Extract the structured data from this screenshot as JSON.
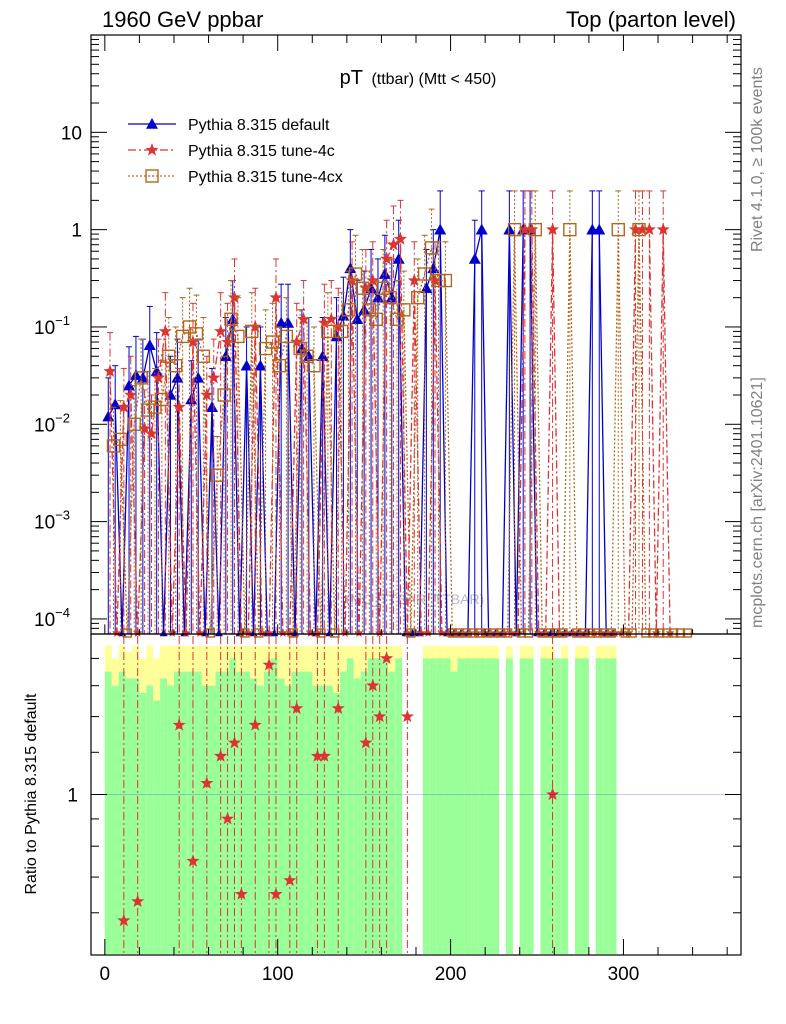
{
  "header": {
    "left": "1960 GeV ppbar",
    "right": "Top (parton level)"
  },
  "side_labels": {
    "rivet": "Rivet 4.1.0, ≥ 100k events",
    "mcplots": "mcplots.cern.ch [arXiv:2401.10621]"
  },
  "watermark": "(MC_TTBAR_TTBAR)",
  "colors": {
    "default": "#0000cc",
    "tune4c": "#dd3333",
    "tune4cx": "#b5651d",
    "band_inner": "#99ff99",
    "band_outer": "#ffff99"
  },
  "chart_data": [
    {
      "type": "line",
      "title_main": "pT",
      "title_sub": "(ttbar) (Mtt < 450)",
      "xlabel": "",
      "ylabel": "",
      "yscale": "log",
      "xlim": [
        -8,
        368
      ],
      "ylim": [
        7e-05,
        100
      ],
      "y_ticks": [
        {
          "value": 10,
          "label": "10"
        },
        {
          "value": 1,
          "label": "1"
        },
        {
          "value": 0.1,
          "label": "10",
          "exp": "−1"
        },
        {
          "value": 0.01,
          "label": "10",
          "exp": "−2"
        },
        {
          "value": 0.001,
          "label": "10",
          "exp": "−3"
        },
        {
          "value": 0.0001,
          "label": "10",
          "exp": "−4"
        }
      ],
      "legend": [
        {
          "name": "Pythia 8.315 default",
          "series": "default"
        },
        {
          "name": "Pythia 8.315 tune-4c",
          "series": "tune4c"
        },
        {
          "name": "Pythia 8.315 tune-4cx",
          "series": "tune4cx"
        }
      ],
      "series": [
        {
          "name": "Pythia 8.315 default",
          "key": "default",
          "marker": "triangle",
          "x": [
            2,
            6,
            10,
            14,
            18,
            22,
            26,
            30,
            34,
            38,
            42,
            46,
            50,
            54,
            58,
            62,
            66,
            70,
            74,
            78,
            82,
            86,
            90,
            94,
            98,
            102,
            106,
            110,
            114,
            118,
            122,
            126,
            130,
            134,
            138,
            142,
            146,
            150,
            154,
            158,
            162,
            166,
            170,
            174,
            178,
            182,
            186,
            190,
            194,
            198,
            202,
            206,
            210,
            214,
            218,
            222,
            226,
            230,
            234,
            238,
            242,
            246,
            250,
            254,
            258,
            262,
            266,
            270,
            274,
            278,
            282,
            286,
            290,
            294
          ],
          "values": [
            0.012,
            0.016,
            0,
            0.025,
            0.032,
            0.03,
            0.065,
            0.035,
            0,
            0.02,
            0.03,
            0,
            0.018,
            0.03,
            0,
            0.015,
            0,
            0.05,
            0.12,
            0,
            0.04,
            0,
            0.04,
            0,
            0,
            0.11,
            0.11,
            0,
            0.06,
            0.05,
            0,
            0.05,
            0,
            0.08,
            0.13,
            0.4,
            0.12,
            0.15,
            0.25,
            0.2,
            0.35,
            0.2,
            0.5,
            0,
            0,
            0,
            0.25,
            0.4,
            1,
            0,
            0,
            0,
            0,
            0.5,
            1,
            0,
            0,
            0,
            1,
            0,
            1,
            1,
            0,
            0,
            0,
            0,
            0,
            0,
            0,
            0,
            1,
            1,
            0,
            0
          ]
        },
        {
          "name": "Pythia 8.315 tune-4c",
          "key": "tune4c",
          "marker": "star",
          "x": [
            3,
            7,
            11,
            15,
            19,
            23,
            27,
            31,
            35,
            39,
            43,
            47,
            51,
            55,
            59,
            63,
            67,
            71,
            75,
            79,
            83,
            87,
            91,
            95,
            99,
            103,
            107,
            111,
            115,
            119,
            123,
            127,
            131,
            135,
            139,
            143,
            147,
            151,
            155,
            159,
            163,
            167,
            171,
            175,
            179,
            183,
            187,
            191,
            195,
            199,
            203,
            207,
            211,
            215,
            219,
            223,
            227,
            231,
            235,
            239,
            243,
            247,
            251,
            255,
            259,
            263,
            267,
            271,
            275,
            279,
            283,
            287,
            291,
            295,
            299,
            303,
            307,
            311,
            315,
            319,
            323,
            327
          ],
          "values": [
            0.035,
            0,
            0.015,
            0.02,
            0,
            0.009,
            0.008,
            0.03,
            0.09,
            0,
            0.015,
            0,
            0.07,
            0,
            0.02,
            0.03,
            0.09,
            0.07,
            0.2,
            0,
            0,
            0.1,
            0,
            0,
            0.2,
            0,
            0,
            0.07,
            0.12,
            0,
            0,
            0.11,
            0.12,
            0.1,
            0,
            0.3,
            0,
            0.25,
            0.3,
            0,
            0.5,
            0.7,
            0.8,
            0,
            0.3,
            0,
            0,
            0.3,
            0,
            0,
            0,
            0,
            0,
            0,
            0,
            0,
            0,
            0,
            0,
            0,
            1,
            1,
            0,
            0,
            1,
            0,
            0,
            0,
            0,
            0,
            0,
            0,
            0,
            0,
            0,
            0,
            1,
            1,
            1,
            0,
            1,
            0
          ]
        },
        {
          "name": "Pythia 8.315 tune-4cx",
          "key": "tune4cx",
          "marker": "square",
          "x": [
            5,
            9,
            13,
            17,
            21,
            25,
            29,
            33,
            37,
            41,
            45,
            49,
            53,
            57,
            61,
            65,
            69,
            73,
            77,
            81,
            85,
            89,
            93,
            97,
            101,
            105,
            109,
            113,
            117,
            121,
            125,
            129,
            133,
            137,
            141,
            145,
            149,
            153,
            157,
            161,
            165,
            169,
            173,
            177,
            181,
            185,
            189,
            193,
            197,
            201,
            205,
            209,
            213,
            217,
            221,
            225,
            229,
            233,
            237,
            241,
            245,
            249,
            253,
            257,
            261,
            265,
            269,
            273,
            277,
            281,
            285,
            289,
            293,
            297,
            301,
            305,
            309,
            313,
            317,
            321,
            325,
            329,
            333,
            337
          ],
          "values": [
            0.006,
            0.007,
            0,
            0.01,
            0.03,
            0.014,
            0.015,
            0.018,
            0.05,
            0.04,
            0.08,
            0.1,
            0.085,
            0.05,
            0,
            0.003,
            0.02,
            0.12,
            0.08,
            0,
            0.09,
            0,
            0.06,
            0.07,
            0.04,
            0.08,
            0,
            0.06,
            0.05,
            0.04,
            0,
            0.09,
            0,
            0.09,
            0.15,
            0.35,
            0.25,
            0.15,
            0.12,
            0.25,
            0.2,
            0.12,
            0.15,
            0,
            0.2,
            0.35,
            0.65,
            0.3,
            0.3,
            0,
            0,
            0,
            0,
            0,
            0,
            0,
            0,
            0,
            1,
            0,
            0,
            1,
            0,
            0,
            0,
            0,
            1,
            0,
            0,
            0,
            0,
            0,
            0,
            1,
            0,
            0,
            1,
            0,
            0,
            0,
            0,
            0,
            0,
            0
          ]
        }
      ]
    },
    {
      "type": "line",
      "title": "",
      "xlabel": "",
      "ylabel": "Ratio to Pythia 8.315 default",
      "yscale": "log",
      "xlim": [
        -8,
        368
      ],
      "ylim": [
        0.5,
        2
      ],
      "x_ticks": [
        0,
        100,
        200,
        300
      ],
      "y_ticks": [
        {
          "value": 1,
          "label": "1"
        }
      ],
      "bands": {
        "x": [
          2,
          6,
          10,
          14,
          18,
          22,
          26,
          30,
          34,
          38,
          42,
          46,
          50,
          54,
          58,
          62,
          66,
          70,
          74,
          78,
          82,
          86,
          90,
          94,
          98,
          102,
          106,
          110,
          114,
          118,
          122,
          126,
          130,
          134,
          138,
          142,
          146,
          150,
          154,
          158,
          162,
          166,
          170,
          174,
          178,
          182,
          186,
          190,
          194,
          198,
          202,
          206,
          210,
          214,
          218,
          222,
          226,
          230,
          234,
          238,
          242,
          246,
          250,
          254,
          258,
          262,
          266,
          270,
          274,
          278,
          282,
          286,
          290,
          294
        ],
        "inner_hi": [
          1.7,
          1.6,
          1.7,
          1.65,
          1.65,
          1.55,
          1.6,
          1.5,
          1.65,
          1.6,
          1.7,
          1.7,
          1.7,
          1.7,
          1.6,
          1.6,
          1.7,
          1.7,
          1.8,
          1.7,
          1.7,
          1.65,
          1.6,
          1.7,
          1.8,
          1.65,
          1.6,
          1.7,
          1.7,
          1.7,
          1.6,
          1.6,
          1.6,
          1.55,
          1.7,
          1.8,
          1.65,
          1.7,
          1.8,
          1.8,
          1.8,
          1.7,
          1.8,
          0,
          0,
          0,
          1.8,
          1.8,
          1.8,
          1.8,
          1.7,
          1.8,
          1.8,
          1.8,
          1.8,
          1.8,
          1.8,
          0,
          1.8,
          0,
          1.8,
          1.8,
          0,
          1.8,
          1.8,
          1.8,
          1.8,
          0,
          1.8,
          1.8,
          0,
          1.8,
          1.8,
          1.8
        ],
        "outer_hi": [
          1.9,
          1.8,
          1.9,
          1.85,
          1.9,
          1.8,
          1.9,
          1.8,
          1.9,
          1.9,
          1.9,
          1.9,
          1.9,
          1.9,
          1.9,
          1.9,
          1.9,
          1.9,
          1.9,
          1.9,
          1.9,
          1.9,
          1.9,
          1.9,
          1.9,
          1.9,
          1.9,
          1.9,
          1.9,
          1.9,
          1.9,
          1.9,
          1.9,
          1.9,
          1.9,
          1.9,
          1.9,
          1.9,
          1.9,
          1.9,
          1.9,
          1.9,
          1.9,
          0,
          0,
          0,
          1.9,
          1.9,
          1.9,
          1.9,
          1.9,
          1.9,
          1.9,
          1.9,
          1.9,
          1.9,
          1.9,
          0,
          1.9,
          0,
          1.9,
          1.9,
          0,
          1.9,
          1.9,
          1.75,
          1.9,
          0,
          1.9,
          1.9,
          0,
          1.9,
          1.9,
          1.9
        ]
      },
      "series": [
        {
          "name": "Pythia 8.315 tune-4c",
          "key": "tune4c",
          "marker": "star",
          "x": [
            11,
            19,
            43,
            51,
            59,
            67,
            71,
            75,
            79,
            87,
            95,
            99,
            107,
            111,
            123,
            127,
            135,
            151,
            155,
            159,
            163,
            175,
            259
          ],
          "values": [
            0.58,
            0.63,
            1.35,
            0.75,
            1.05,
            1.18,
            0.9,
            1.25,
            0.65,
            1.35,
            1.75,
            0.65,
            0.69,
            1.45,
            1.18,
            1.18,
            1.45,
            1.25,
            1.6,
            1.4,
            1.8,
            1.4,
            1.0
          ]
        }
      ]
    }
  ]
}
